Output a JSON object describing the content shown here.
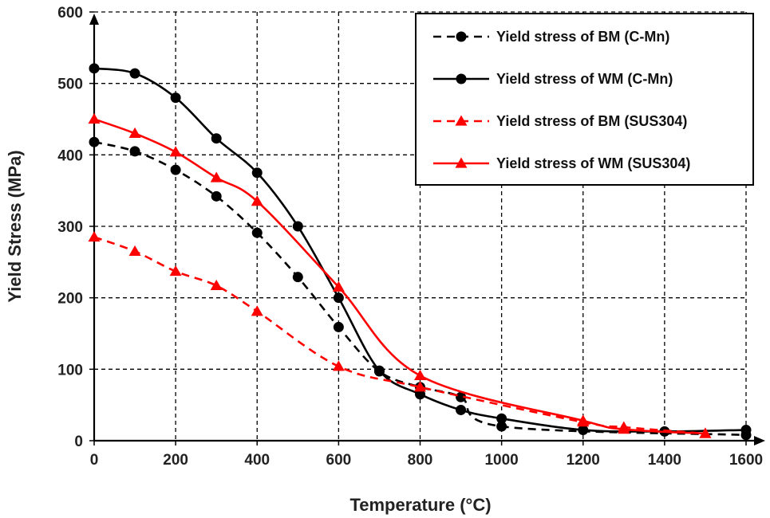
{
  "chart_data": {
    "type": "line",
    "xlabel": "Temperature (°C)",
    "ylabel": "Yield Stress (MPa)",
    "xlim": [
      0,
      1600
    ],
    "ylim": [
      0,
      600
    ],
    "xticks": [
      0,
      200,
      400,
      600,
      800,
      1000,
      1200,
      1400,
      1600
    ],
    "yticks": [
      0,
      100,
      200,
      300,
      400,
      500,
      600
    ],
    "grid": "dashed",
    "legend_position": "top-right",
    "series": [
      {
        "name": "Yield stress of BM (C-Mn)",
        "color": "#000000",
        "line": "dashed",
        "marker": "circle",
        "x": [
          0,
          100,
          200,
          300,
          400,
          500,
          600,
          700,
          800,
          900,
          1000,
          1600
        ],
        "y": [
          418,
          405,
          379,
          342,
          291,
          229,
          159,
          97,
          75,
          61,
          20,
          8
        ]
      },
      {
        "name": "Yield stress of WM (C-Mn)",
        "color": "#000000",
        "line": "solid",
        "marker": "circle",
        "x": [
          0,
          100,
          200,
          300,
          400,
          500,
          600,
          700,
          800,
          900,
          1000,
          1200,
          1400,
          1600
        ],
        "y": [
          521,
          514,
          480,
          423,
          375,
          300,
          200,
          98,
          65,
          43,
          31,
          15,
          13,
          15
        ]
      },
      {
        "name": "Yield stress of BM (SUS304)",
        "color": "#ff0000",
        "line": "dashed",
        "marker": "triangle",
        "x": [
          0,
          100,
          200,
          300,
          400,
          600,
          800,
          1200,
          1300,
          1500
        ],
        "y": [
          285,
          265,
          237,
          217,
          181,
          104,
          75,
          26,
          19,
          10
        ]
      },
      {
        "name": "Yield stress of WM (SUS304)",
        "color": "#ff0000",
        "line": "solid",
        "marker": "triangle",
        "x": [
          0,
          100,
          200,
          300,
          400,
          600,
          800,
          1200,
          1300,
          1500
        ],
        "y": [
          450,
          430,
          404,
          368,
          335,
          215,
          91,
          28,
          16,
          10
        ]
      }
    ]
  }
}
